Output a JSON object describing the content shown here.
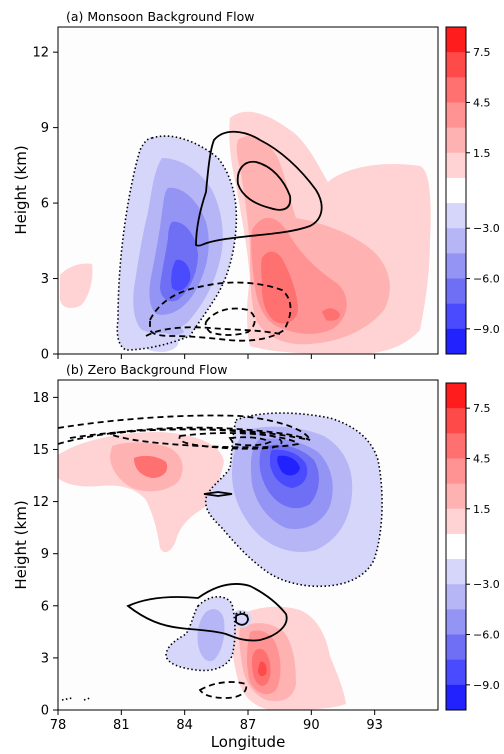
{
  "chart_data": [
    {
      "type": "contour",
      "title": "(a) Monsoon Background Flow",
      "ylabel": "Height (km)",
      "xlabel": "",
      "xlim": [
        78,
        96
      ],
      "ylim": [
        0,
        13
      ],
      "xticks": [
        78,
        81,
        84,
        87,
        90,
        93
      ],
      "xticklabels_shown": false,
      "yticks": [
        0,
        3,
        6,
        9,
        12
      ],
      "colorbar": {
        "levels": [
          -9.0,
          -7.5,
          -6.0,
          -4.5,
          -3.0,
          -1.5,
          1.5,
          3.0,
          4.5,
          6.0,
          7.5,
          9.0
        ],
        "tick_labels": [
          "7.5",
          "4.5",
          "1.5",
          "−3.0",
          "−6.0",
          "−9.0"
        ],
        "negative_colors": [
          "#2222ff",
          "#4a4aff",
          "#6f6ff6",
          "#9494f4",
          "#b6b6f6",
          "#d6d6fb"
        ],
        "positive_colors": [
          "#ffd3d3",
          "#ffb2b2",
          "#ff9292",
          "#ff7070",
          "#ff4a4a",
          "#ff1c1c"
        ]
      },
      "features": [
        {
          "kind": "negative_anomaly",
          "center_lon": 83.8,
          "center_height_km": 3.2,
          "min_value": -7.5
        },
        {
          "kind": "positive_anomaly",
          "center_lon": 87.2,
          "center_height_km": 3.3,
          "max_value": 6.0
        },
        {
          "kind": "solid_contour",
          "region_lon": [
            84,
            92
          ],
          "region_height_km": [
            4.4,
            9.0
          ]
        },
        {
          "kind": "dashed_contour",
          "region_lon": [
            81,
            87.5
          ],
          "region_height_km": [
            0.6,
            3.0
          ]
        }
      ]
    },
    {
      "type": "contour",
      "title": "(b) Zero Background Flow",
      "ylabel": "Height (km)",
      "xlabel": "Longitude",
      "xlim": [
        78,
        96
      ],
      "ylim": [
        0,
        19
      ],
      "xticks": [
        78,
        81,
        84,
        87,
        90,
        93
      ],
      "xticklabels_shown": true,
      "yticks": [
        0,
        3,
        6,
        9,
        12,
        15,
        18
      ],
      "colorbar": {
        "levels": [
          -9.0,
          -7.5,
          -6.0,
          -4.5,
          -3.0,
          -1.5,
          1.5,
          3.0,
          4.5,
          6.0,
          7.5,
          9.0
        ],
        "tick_labels": [
          "7.5",
          "4.5",
          "1.5",
          "−3.0",
          "−6.0",
          "−9.0"
        ],
        "negative_colors": [
          "#2222ff",
          "#4a4aff",
          "#6f6ff6",
          "#9494f4",
          "#b6b6f6",
          "#d6d6fb"
        ],
        "positive_colors": [
          "#ffd3d3",
          "#ffb2b2",
          "#ff9292",
          "#ff7070",
          "#ff4a4a",
          "#ff1c1c"
        ]
      },
      "features": [
        {
          "kind": "negative_anomaly",
          "center_lon": 88.0,
          "center_height_km": 14.0,
          "min_value": -7.5
        },
        {
          "kind": "positive_anomaly",
          "center_lon": 82.5,
          "center_height_km": 14.0,
          "max_value": 6.0
        },
        {
          "kind": "positive_anomaly",
          "center_lon": 87.3,
          "center_height_km": 2.2,
          "max_value": 6.0
        },
        {
          "kind": "dashed_contour",
          "region_lon": [
            78,
            88
          ],
          "region_height_km": [
            15.0,
            16.8
          ]
        },
        {
          "kind": "solid_contour",
          "region_lon": [
            80.8,
            88
          ],
          "region_height_km": [
            3.3,
            7.3
          ]
        }
      ]
    }
  ]
}
